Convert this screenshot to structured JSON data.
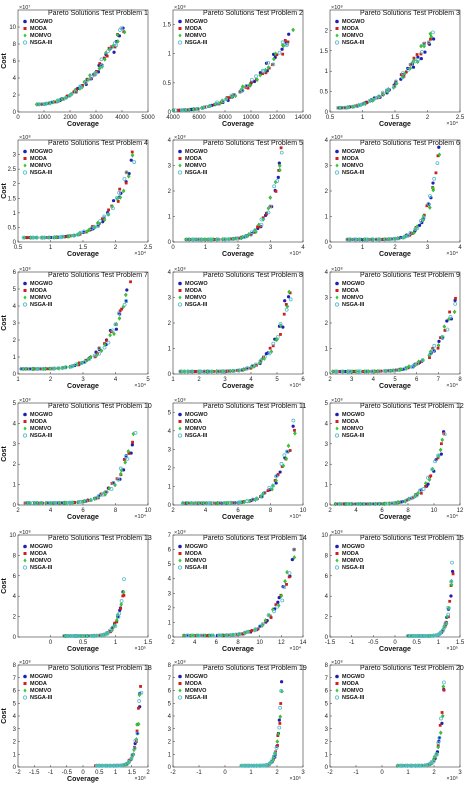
{
  "legend": [
    "MOGWO",
    "MODA",
    "MOMVO",
    "NSGA-III"
  ],
  "colors": {
    "MOGWO": "#1f1fb4",
    "MODA": "#cc1f1f",
    "MOMVO": "#33cc33",
    "NSGA-III": "#55bbcc"
  },
  "chart_data": [
    {
      "type": "scatter",
      "title": "Pareto Solutions Test Problem 1",
      "xlabel": "Coverage",
      "ylabel": "Cost",
      "ymult": "×10⁷",
      "xmult": "",
      "xlim": [
        0,
        5000
      ],
      "ylim": [
        0,
        12
      ],
      "xticks": [
        "0",
        "1000",
        "2000",
        "3000",
        "4000",
        "5000"
      ],
      "yticks": [
        "0",
        "2",
        "4",
        "6",
        "8",
        "10"
      ],
      "front": {
        "x0": 700,
        "x1": 4100,
        "y0": 0.9,
        "y1": 10.0,
        "p": 2.2
      }
    },
    {
      "type": "scatter",
      "title": "Pareto Solutions Test Problem 2",
      "xlabel": "Coverage",
      "ylabel": "",
      "ymult": "×10⁸",
      "xmult": "",
      "xlim": [
        4000,
        14000
      ],
      "ylim": [
        0,
        1.75
      ],
      "xticks": [
        "4000",
        "6000",
        "8000",
        "10000",
        "12000",
        "14000"
      ],
      "yticks": [
        "0",
        "0.5",
        "1",
        "1.5"
      ],
      "front": {
        "x0": 4100,
        "x1": 13200,
        "y0": 0.03,
        "y1": 1.35,
        "p": 2.4
      }
    },
    {
      "type": "scatter",
      "title": "Pareto Solutions Test Problem 3",
      "xlabel": "Coverage",
      "ylabel": "",
      "ymult": "×10⁸",
      "xmult": "×10⁴",
      "xlim": [
        0.5,
        2.5
      ],
      "ylim": [
        0,
        2.5
      ],
      "xticks": [
        "0.5",
        "1",
        "1.5",
        "2",
        "2.5"
      ],
      "yticks": [
        "0",
        "0.5",
        "1",
        "1.5",
        "2"
      ],
      "front": {
        "x0": 0.6,
        "x1": 2.1,
        "y0": 0.1,
        "y1": 2.0,
        "p": 2.3
      }
    },
    {
      "type": "scatter",
      "title": "Pareto Solutions Test Problem 4",
      "xlabel": "Coverage",
      "ylabel": "Cost",
      "ymult": "×10⁸",
      "xmult": "×10⁴",
      "xlim": [
        0.5,
        2.5
      ],
      "ylim": [
        0,
        3.5
      ],
      "xticks": [
        "0.5",
        "1",
        "1.5",
        "2",
        "2.5"
      ],
      "yticks": [
        "0",
        "0.5",
        "1",
        "1.5",
        "2",
        "2.5",
        "3"
      ],
      "front": {
        "x0": 0.6,
        "x1": 2.3,
        "y0": 0.15,
        "y1": 3.1,
        "p": 4.5
      }
    },
    {
      "type": "scatter",
      "title": "Pareto Solutions Test Problem 5",
      "xlabel": "Coverage",
      "ylabel": "",
      "ymult": "×10⁸",
      "xmult": "×10⁴",
      "xlim": [
        0,
        4
      ],
      "ylim": [
        0,
        4
      ],
      "xticks": [
        "0",
        "1",
        "2",
        "3",
        "4"
      ],
      "yticks": [
        "0",
        "1",
        "2",
        "3",
        "4"
      ],
      "front": {
        "x0": 0.4,
        "x1": 3.4,
        "y0": 0.1,
        "y1": 3.9,
        "p": 7.0
      }
    },
    {
      "type": "scatter",
      "title": "Pareto Solutions Test Problem 6",
      "xlabel": "Coverage",
      "ylabel": "",
      "ymult": "×10⁸",
      "xmult": "×10⁴",
      "xlim": [
        0,
        4
      ],
      "ylim": [
        0,
        4
      ],
      "xticks": [
        "0",
        "1",
        "2",
        "3",
        "4"
      ],
      "yticks": [
        "0",
        "1",
        "2",
        "3",
        "4"
      ],
      "front": {
        "x0": 0.5,
        "x1": 3.4,
        "y0": 0.1,
        "y1": 3.9,
        "p": 7.5
      }
    },
    {
      "type": "scatter",
      "title": "Pareto Solutions Test Problem 7",
      "xlabel": "Coverage",
      "ylabel": "Cost",
      "ymult": "×10⁸",
      "xmult": "×10⁴",
      "xlim": [
        1,
        5
      ],
      "ylim": [
        0,
        6
      ],
      "xticks": [
        "1",
        "2",
        "3",
        "4",
        "5"
      ],
      "yticks": [
        "0",
        "1",
        "2",
        "3",
        "4",
        "5",
        "6"
      ],
      "front": {
        "x0": 1.1,
        "x1": 4.45,
        "y0": 0.3,
        "y1": 5.2,
        "p": 4.5
      }
    },
    {
      "type": "scatter",
      "title": "Pareto Solutions Test Problem 8",
      "xlabel": "Coverage",
      "ylabel": "",
      "ymult": "×10⁸",
      "xmult": "×10⁴",
      "xlim": [
        1,
        6
      ],
      "ylim": [
        0,
        4
      ],
      "xticks": [
        "1",
        "2",
        "3",
        "4",
        "5",
        "6"
      ],
      "yticks": [
        "0",
        "1",
        "2",
        "3",
        "4"
      ],
      "front": {
        "x0": 1.2,
        "x1": 5.6,
        "y0": 0.1,
        "y1": 3.9,
        "p": 7.0
      }
    },
    {
      "type": "scatter",
      "title": "Pareto Solutions Test Problem 9",
      "xlabel": "Coverage",
      "ylabel": "",
      "ymult": "×10⁸",
      "xmult": "×10⁴",
      "xlim": [
        2,
        8
      ],
      "ylim": [
        0,
        4
      ],
      "xticks": [
        "2",
        "3",
        "4",
        "5",
        "6",
        "7",
        "8"
      ],
      "yticks": [
        "0",
        "1",
        "2",
        "3",
        "4"
      ],
      "front": {
        "x0": 2.1,
        "x1": 7.9,
        "y0": 0.1,
        "y1": 3.2,
        "p": 6.0
      }
    },
    {
      "type": "scatter",
      "title": "Pareto Solutions Test Problem 10",
      "xlabel": "Coverage",
      "ylabel": "Cost",
      "ymult": "×10⁸",
      "xmult": "×10⁴",
      "xlim": [
        2,
        10
      ],
      "ylim": [
        0,
        5
      ],
      "xticks": [
        "2",
        "4",
        "6",
        "8",
        "10"
      ],
      "yticks": [
        "0",
        "1",
        "2",
        "3",
        "4",
        "5"
      ],
      "front": {
        "x0": 2.4,
        "x1": 9.3,
        "y0": 0.1,
        "y1": 3.7,
        "p": 6.0
      }
    },
    {
      "type": "scatter",
      "title": "Pareto Solutions Test Problem 11",
      "xlabel": "Coverage",
      "ylabel": "",
      "ymult": "×10⁸",
      "xmult": "×10⁴",
      "xlim": [
        2,
        10
      ],
      "ylim": [
        0,
        5.5
      ],
      "xticks": [
        "2",
        "4",
        "6",
        "8",
        "10"
      ],
      "yticks": [
        "0",
        "1",
        "2",
        "3",
        "4",
        "5"
      ],
      "front": {
        "x0": 2.5,
        "x1": 9.6,
        "y0": 0.1,
        "y1": 4.9,
        "p": 7.0
      }
    },
    {
      "type": "scatter",
      "title": "Pareto Solutions Test Problem 12",
      "xlabel": "Coverage",
      "ylabel": "",
      "ymult": "×10⁸",
      "xmult": "×10⁴",
      "xlim": [
        2,
        12
      ],
      "ylim": [
        0,
        5
      ],
      "xticks": [
        "2",
        "4",
        "6",
        "8",
        "10",
        "12"
      ],
      "yticks": [
        "0",
        "1",
        "2",
        "3",
        "4",
        "5"
      ],
      "front": {
        "x0": 2.5,
        "x1": 11.0,
        "y0": 0.05,
        "y1": 4.2,
        "p": 7.0
      }
    },
    {
      "type": "scatter",
      "title": "Pareto Solutions Test Problem 13",
      "xlabel": "",
      "ylabel": "Cost",
      "ymult": "×10⁸",
      "xmult": "×10⁵",
      "xlim": [
        -0.5,
        1.5
      ],
      "ylim": [
        0,
        10
      ],
      "xticks": [
        "0",
        "0.5",
        "1",
        "1.5"
      ],
      "yticks": [
        "0",
        "2",
        "4",
        "6",
        "8",
        "10"
      ],
      "front": {
        "x0": 0.2,
        "x1": 1.15,
        "y0": 0.1,
        "y1": 5.8,
        "p": 9.0
      }
    },
    {
      "type": "scatter",
      "title": "Pareto Solutions Test Problem 14",
      "xlabel": "",
      "ylabel": "",
      "ymult": "×10⁸",
      "xmult": "×10⁴",
      "xlim": [
        2,
        14
      ],
      "ylim": [
        0,
        7
      ],
      "xticks": [
        "2",
        "4",
        "6",
        "8",
        "10",
        "12",
        "14"
      ],
      "yticks": [
        "0",
        "1",
        "2",
        "3",
        "4",
        "5",
        "6",
        "7"
      ],
      "front": {
        "x0": 3.0,
        "x1": 13.3,
        "y0": 0.1,
        "y1": 6.2,
        "p": 6.0
      }
    },
    {
      "type": "scatter",
      "title": "Pareto Solutions Test Problem 15",
      "xlabel": "",
      "ylabel": "",
      "ymult": "×10⁸",
      "xmult": "×10⁵",
      "xlim": [
        -1.5,
        1.5
      ],
      "ylim": [
        0,
        10
      ],
      "xticks": [
        "-1.5",
        "-1",
        "-0.5",
        "0",
        "0.5",
        "1",
        "1.5"
      ],
      "yticks": [
        "0",
        "2",
        "4",
        "6",
        "8",
        "10"
      ],
      "front": {
        "x0": 0.3,
        "x1": 1.35,
        "y0": 0.1,
        "y1": 8.0,
        "p": 10.0
      }
    },
    {
      "type": "scatter",
      "title": "Pareto Solutions Test Problem 18",
      "xlabel": "Coverage",
      "ylabel": "Cost",
      "ymult": "×10⁸",
      "xmult": "",
      "xlim": [
        -2,
        2
      ],
      "ylim": [
        0,
        8
      ],
      "xticks": [
        "-2",
        "-1.5",
        "-1",
        "-0.5",
        "0",
        "0.5",
        "1",
        "1.5",
        "2"
      ],
      "yticks": [
        "0",
        "1",
        "2",
        "3",
        "4",
        "5",
        "6",
        "7",
        "8"
      ],
      "front": {
        "x0": 0.4,
        "x1": 1.8,
        "y0": 0.1,
        "y1": 7.6,
        "p": 10.0
      }
    },
    {
      "type": "scatter",
      "title": "Pareto Solutions Test Problem 19",
      "xlabel": "",
      "ylabel": "",
      "ymult": "×10⁸",
      "xmult": "",
      "xlim": [
        -2,
        3
      ],
      "ylim": [
        0,
        8
      ],
      "xticks": [
        "-2",
        "-1",
        "0",
        "1",
        "2",
        "3"
      ],
      "yticks": [
        "0",
        "1",
        "2",
        "3",
        "4",
        "5",
        "6",
        "7",
        "8"
      ],
      "front": {
        "x0": 0.6,
        "x1": 2.2,
        "y0": 0.1,
        "y1": 7.5,
        "p": 11.0
      }
    },
    {
      "type": "scatter",
      "title": "Pareto Solutions Test Problem 20",
      "xlabel": "",
      "ylabel": "",
      "ymult": "×10⁸",
      "xmult": "",
      "xlim": [
        -2,
        3
      ],
      "ylim": [
        0,
        8
      ],
      "xticks": [
        "-2",
        "-1",
        "0",
        "1",
        "2",
        "3"
      ],
      "yticks": [
        "0",
        "1",
        "2",
        "3",
        "4",
        "5",
        "6",
        "7",
        "8"
      ],
      "front": {
        "x0": 0.6,
        "x1": 2.4,
        "y0": 0.1,
        "y1": 7.4,
        "p": 11.0
      }
    }
  ],
  "footer": {
    "xlabel": "Coverage",
    "xmult": "×10⁵"
  }
}
